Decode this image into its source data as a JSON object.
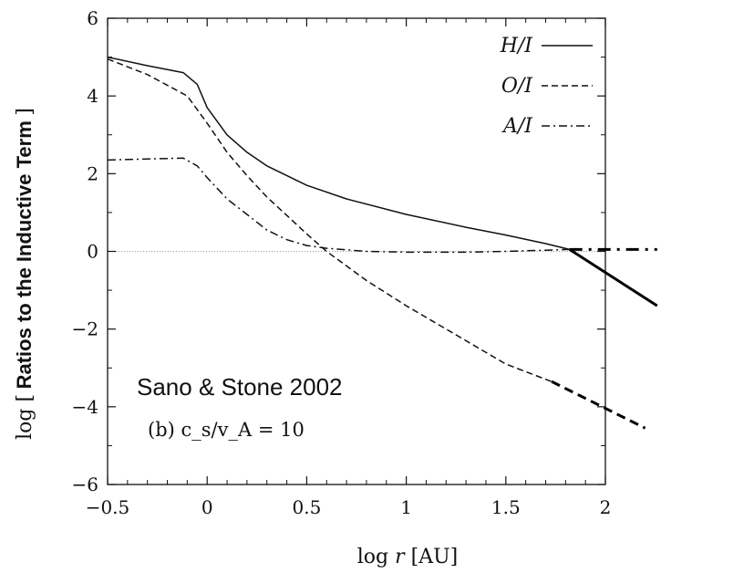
{
  "chart_data": {
    "type": "line",
    "xlabel_prefix": "log",
    "xlabel_var": "r",
    "xlabel_unit": "[AU]",
    "ylabel_prefix": "log [",
    "ylabel_main": "Ratios to the Inductive Term",
    "ylabel_suffix": "]",
    "xlim": [
      -0.5,
      2.0
    ],
    "ylim": [
      -6,
      6
    ],
    "x_ticks": [
      -0.5,
      0,
      0.5,
      1,
      1.5,
      2
    ],
    "x_tick_labels": [
      "−0.5",
      "0",
      "0.5",
      "1",
      "1.5",
      "2"
    ],
    "y_ticks": [
      -6,
      -4,
      -2,
      0,
      2,
      4,
      6
    ],
    "y_tick_labels": [
      "−6",
      "−4",
      "−2",
      "0",
      "2",
      "4",
      "6"
    ],
    "zero_reference_line": true,
    "legend_placement": "top-right",
    "annotation_source": "Sano & Stone 2002",
    "annotation_panel": "(b) c_s/v_A = 10",
    "series": [
      {
        "name": "H/I",
        "style": "solid",
        "x": [
          -0.5,
          -0.3,
          -0.12,
          -0.05,
          0.0,
          0.1,
          0.2,
          0.3,
          0.5,
          0.7,
          1.0,
          1.3,
          1.5,
          1.7,
          1.82
        ],
        "y": [
          5.0,
          4.78,
          4.6,
          4.3,
          3.7,
          3.0,
          2.55,
          2.2,
          1.7,
          1.35,
          0.95,
          0.62,
          0.42,
          0.2,
          0.05
        ]
      },
      {
        "name": "O/I",
        "style": "dashed",
        "x": [
          -0.5,
          -0.3,
          -0.1,
          0.0,
          0.1,
          0.2,
          0.3,
          0.5,
          0.6,
          0.8,
          1.0,
          1.3,
          1.5,
          1.73
        ],
        "y": [
          4.95,
          4.55,
          4.0,
          3.3,
          2.55,
          1.95,
          1.4,
          0.45,
          0.0,
          -0.75,
          -1.4,
          -2.3,
          -2.9,
          -3.35
        ]
      },
      {
        "name": "A/I",
        "style": "dash-dot",
        "x": [
          -0.5,
          -0.3,
          -0.12,
          -0.05,
          0.0,
          0.1,
          0.2,
          0.3,
          0.4,
          0.5,
          0.6,
          0.8,
          1.0,
          1.3,
          1.5,
          1.7,
          1.82
        ],
        "y": [
          2.35,
          2.38,
          2.4,
          2.2,
          1.9,
          1.35,
          0.95,
          0.55,
          0.3,
          0.15,
          0.08,
          0.0,
          -0.02,
          -0.02,
          0.0,
          0.03,
          0.05
        ]
      }
    ],
    "extrapolations": [
      {
        "series": "H/I",
        "style": "solid",
        "x": [
          1.82,
          2.26
        ],
        "y": [
          0.05,
          -1.4
        ]
      },
      {
        "series": "A/I",
        "style": "dash-dot",
        "x": [
          1.82,
          2.26
        ],
        "y": [
          0.05,
          0.05
        ]
      },
      {
        "series": "O/I",
        "style": "dashed",
        "x": [
          1.73,
          2.2
        ],
        "y": [
          -3.35,
          -4.55
        ]
      }
    ]
  }
}
